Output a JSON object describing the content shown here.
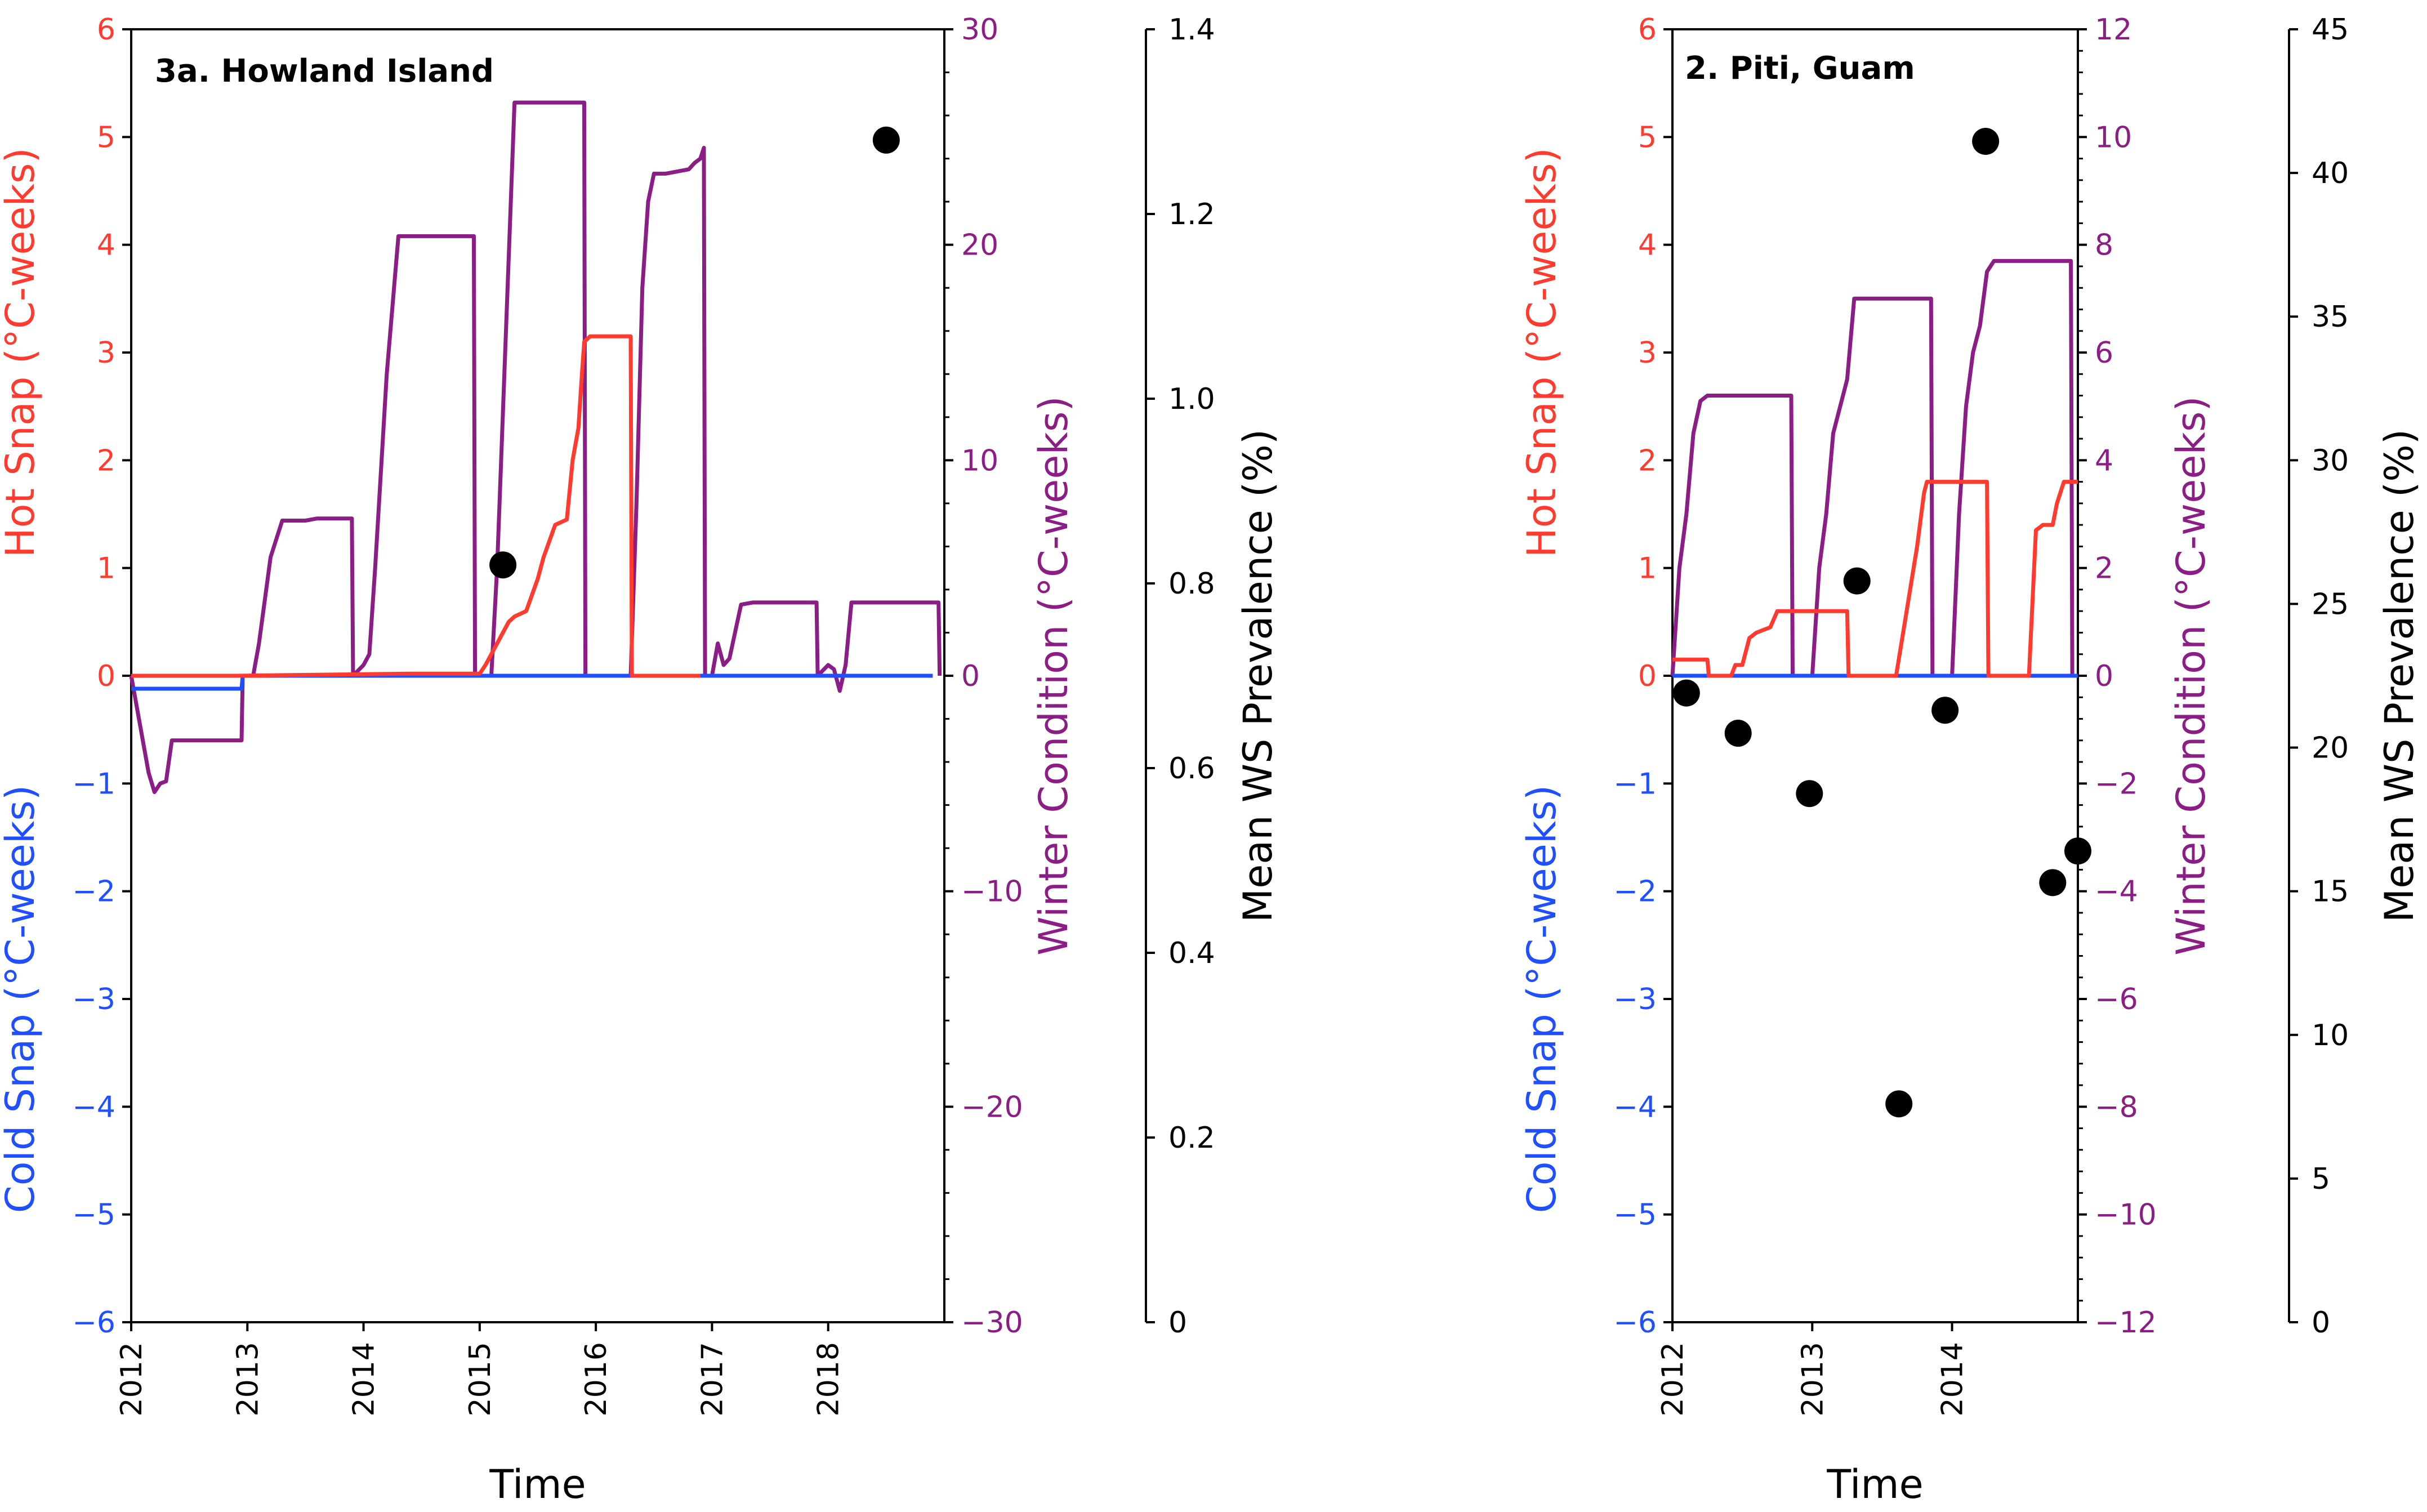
{
  "colors": {
    "hot": "#ff3b30",
    "cold": "#1f4fff",
    "winter": "#8b1e85",
    "prevalence": "#000000"
  },
  "chart_data": [
    {
      "type": "line",
      "title": "3a. Howland Island",
      "xlabel": "Time",
      "x_ticks": [
        "2012",
        "2013",
        "2014",
        "2015",
        "2016",
        "2017",
        "2018"
      ],
      "xlim": [
        2012,
        2019
      ],
      "hot_cold_axis": {
        "label_top": "Hot Snap (°C-weeks)",
        "label_bottom": "Cold Snap (°C-weeks)",
        "ylim": [
          -6,
          6
        ],
        "ticks": [
          "−6",
          "−5",
          "−4",
          "−3",
          "−2",
          "−1",
          "0",
          "1",
          "2",
          "3",
          "4",
          "5",
          "6"
        ]
      },
      "winter_axis": {
        "label": "Winter Condition (°C-weeks)",
        "ylim": [
          -30,
          30
        ],
        "ticks": [
          "−30",
          "−20",
          "−10",
          "0",
          "10",
          "20",
          "30"
        ]
      },
      "prevalence_axis": {
        "label": "Mean WS Prevalence (%)",
        "ylim": [
          0,
          1.4
        ],
        "ticks": [
          "0",
          "0.2",
          "0.4",
          "0.6",
          "0.8",
          "1.0",
          "1.2",
          "1.4"
        ]
      },
      "series": [
        {
          "name": "Hot Snap",
          "axis": "hot_cold",
          "x": [
            2012.0,
            2012.9,
            2014.4,
            2015.0,
            2015.05,
            2015.25,
            2015.3,
            2015.4,
            2015.5,
            2015.55,
            2015.65,
            2015.75,
            2015.8,
            2015.85,
            2015.88,
            2015.9,
            2015.95,
            2016.0,
            2016.3,
            2016.31,
            2016.9
          ],
          "y": [
            0,
            0,
            0.02,
            0.02,
            0.1,
            0.5,
            0.55,
            0.6,
            0.9,
            1.1,
            1.4,
            1.45,
            2.0,
            2.3,
            2.8,
            3.1,
            3.15,
            3.15,
            3.15,
            0,
            0
          ]
        },
        {
          "name": "Cold Snap",
          "axis": "hot_cold",
          "x": [
            2012.0,
            2012.95,
            2012.96,
            2018.9
          ],
          "y": [
            -0.12,
            -0.12,
            0,
            0
          ]
        },
        {
          "name": "Winter Condition",
          "axis": "winter",
          "x": [
            2012.0,
            2012.05,
            2012.1,
            2012.15,
            2012.2,
            2012.25,
            2012.3,
            2012.35,
            2012.5,
            2012.95,
            2012.96,
            2013.05,
            2013.1,
            2013.15,
            2013.2,
            2013.3,
            2013.4,
            2013.5,
            2013.6,
            2013.8,
            2013.9,
            2013.91,
            2014.0,
            2014.05,
            2014.1,
            2014.2,
            2014.3,
            2014.4,
            2014.5,
            2014.6,
            2014.95,
            2014.96,
            2015.1,
            2015.15,
            2015.3,
            2015.9,
            2015.91,
            2016.3,
            2016.35,
            2016.4,
            2016.45,
            2016.5,
            2016.6,
            2016.8,
            2016.85,
            2016.9,
            2016.93,
            2016.94,
            2017.0,
            2017.05,
            2017.1,
            2017.15,
            2017.25,
            2017.35,
            2017.9,
            2017.91,
            2018.0,
            2018.05,
            2018.1,
            2018.15,
            2018.2,
            2018.3,
            2018.4,
            2018.95,
            2018.96
          ],
          "y": [
            0,
            -1.5,
            -3,
            -4.5,
            -5.4,
            -5.0,
            -4.9,
            -3.0,
            -3.0,
            -3.0,
            0,
            0,
            1.5,
            3.5,
            5.5,
            7.2,
            7.2,
            7.2,
            7.3,
            7.3,
            7.3,
            0,
            0.5,
            1,
            5,
            14,
            20.4,
            20.4,
            20.4,
            20.4,
            20.4,
            0,
            0,
            5,
            26.6,
            26.6,
            0,
            0,
            8,
            18,
            22,
            23.3,
            23.3,
            23.5,
            23.8,
            24.0,
            24.5,
            0,
            0,
            1.5,
            0.5,
            0.8,
            3.3,
            3.4,
            3.4,
            0,
            0.5,
            0.3,
            -0.7,
            0.5,
            3.4,
            3.4,
            3.4,
            3.4,
            0
          ]
        },
        {
          "name": "Mean WS Prevalence",
          "type": "scatter",
          "axis": "prevalence",
          "x": [
            2015.2,
            2018.5
          ],
          "y": [
            0.82,
            1.28
          ]
        }
      ]
    },
    {
      "type": "line",
      "title": "2. Piti, Guam",
      "xlabel": "Time",
      "x_ticks": [
        "2012",
        "2013",
        "2014"
      ],
      "xlim": [
        2012,
        2014.9
      ],
      "hot_cold_axis": {
        "label_top": "Hot Snap (°C-weeks)",
        "label_bottom": "Cold Snap (°C-weeks)",
        "ylim": [
          -6,
          6
        ],
        "ticks": [
          "−6",
          "−5",
          "−4",
          "−3",
          "−2",
          "−1",
          "0",
          "1",
          "2",
          "3",
          "4",
          "5",
          "6"
        ]
      },
      "winter_axis": {
        "label": "Winter Condition (°C-weeks)",
        "ylim": [
          -12,
          12
        ],
        "ticks": [
          "−12",
          "−10",
          "−8",
          "−6",
          "−4",
          "−2",
          "0",
          "2",
          "4",
          "6",
          "8",
          "10",
          "12"
        ]
      },
      "prevalence_axis": {
        "label": "Mean WS Prevalence (%)",
        "ylim": [
          0,
          45
        ],
        "ticks": [
          "0",
          "5",
          "10",
          "15",
          "20",
          "25",
          "30",
          "35",
          "40",
          "45"
        ]
      },
      "series": [
        {
          "name": "Hot Snap",
          "axis": "hot_cold",
          "x": [
            2012.0,
            2012.25,
            2012.26,
            2012.42,
            2012.45,
            2012.5,
            2012.55,
            2012.6,
            2012.7,
            2012.75,
            2012.8,
            2013.25,
            2013.26,
            2013.6,
            2013.65,
            2013.7,
            2013.75,
            2013.8,
            2013.82,
            2014.1,
            2014.25,
            2014.26,
            2014.55,
            2014.6,
            2014.65,
            2014.72,
            2014.75,
            2014.8,
            2014.9
          ],
          "y": [
            0.15,
            0.15,
            0,
            0,
            0.1,
            0.1,
            0.35,
            0.4,
            0.45,
            0.6,
            0.6,
            0.6,
            0,
            0,
            0.4,
            0.8,
            1.2,
            1.7,
            1.8,
            1.8,
            1.8,
            0,
            0,
            1.35,
            1.4,
            1.4,
            1.6,
            1.8,
            1.8
          ]
        },
        {
          "name": "Cold Snap",
          "axis": "hot_cold",
          "x": [
            2012.0,
            2014.9
          ],
          "y": [
            0,
            0
          ]
        },
        {
          "name": "Winter Condition",
          "axis": "winter",
          "x": [
            2012.0,
            2012.05,
            2012.1,
            2012.15,
            2012.2,
            2012.25,
            2012.3,
            2012.5,
            2012.8,
            2012.85,
            2012.86,
            2013.0,
            2013.05,
            2013.1,
            2013.15,
            2013.25,
            2013.3,
            2013.35,
            2013.5,
            2013.85,
            2013.86,
            2014.0,
            2014.05,
            2014.1,
            2014.15,
            2014.2,
            2014.25,
            2014.3,
            2014.35,
            2014.6,
            2014.85,
            2014.86,
            2014.9
          ],
          "y": [
            0,
            2.0,
            3.0,
            4.5,
            5.1,
            5.2,
            5.2,
            5.2,
            5.2,
            5.2,
            0,
            0,
            2.0,
            3.0,
            4.5,
            5.5,
            7.0,
            7.0,
            7.0,
            7.0,
            0,
            0,
            3.0,
            5.0,
            6.0,
            6.5,
            7.5,
            7.7,
            7.7,
            7.7,
            7.7,
            0,
            0
          ]
        },
        {
          "name": "Mean WS Prevalence",
          "type": "scatter",
          "axis": "prevalence",
          "x": [
            2012.1,
            2012.47,
            2012.98,
            2013.32,
            2013.62,
            2013.95,
            2014.24,
            2014.72,
            2014.9
          ],
          "y": [
            21.9,
            20.5,
            18.4,
            25.8,
            7.6,
            21.3,
            41.1,
            15.3,
            16.4
          ]
        }
      ]
    }
  ]
}
